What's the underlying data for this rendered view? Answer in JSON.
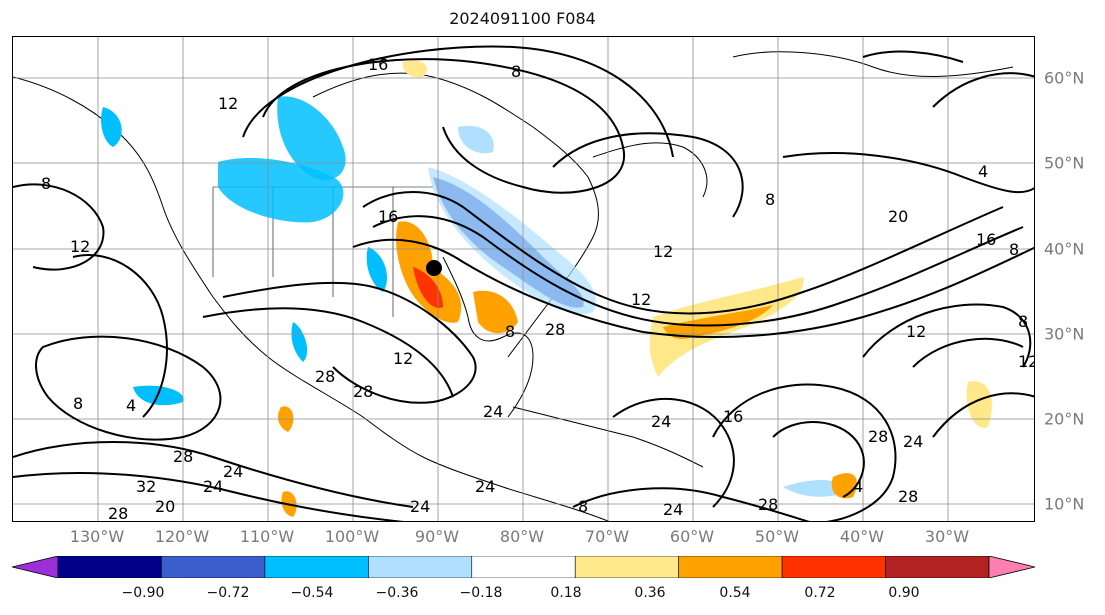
{
  "title": "2024091100 F084",
  "lon_labels": [
    "130°W",
    "120°W",
    "110°W",
    "100°W",
    "90°W",
    "80°W",
    "70°W",
    "60°W",
    "50°W",
    "40°W",
    "30°W"
  ],
  "lat_labels": [
    "60°N",
    "50°N",
    "40°N",
    "30°N",
    "20°N",
    "10°N"
  ],
  "colorbar": {
    "ticks": [
      "−0.90",
      "−0.72",
      "−0.54",
      "−0.36",
      "−0.18",
      "0.18",
      "0.36",
      "0.54",
      "0.72",
      "0.90"
    ],
    "colors": [
      "#9b30d9",
      "#00008b",
      "#3a5fcd",
      "#00bfff",
      "#afe0ff",
      "#ffffff",
      "#ffe88a",
      "#ffa200",
      "#ff3300",
      "#b22222",
      "#ff80b0"
    ]
  },
  "contour_labels": [
    "16",
    "8",
    "12",
    "8",
    "4",
    "8",
    "20",
    "16",
    "8",
    "12",
    "12",
    "16",
    "12",
    "8",
    "12",
    "28",
    "28",
    "12",
    "8",
    "12",
    "28",
    "8",
    "8",
    "4",
    "28",
    "24",
    "24",
    "16",
    "28",
    "24",
    "28",
    "32",
    "20",
    "24",
    "24",
    "24",
    "24",
    "28",
    "24",
    "28",
    "4"
  ],
  "storm_marker": "storm-center"
}
